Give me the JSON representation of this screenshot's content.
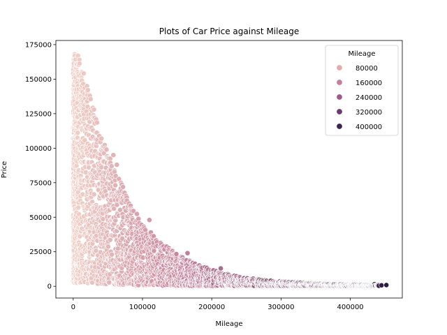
{
  "chart_data": {
    "type": "scatter",
    "title": "Plots of Car Price against Mileage",
    "xlabel": "Mileage",
    "ylabel": "Price",
    "xlim": [
      -25000,
      475000
    ],
    "ylim": [
      -8500,
      178000
    ],
    "xticks": [
      0,
      100000,
      200000,
      300000,
      400000
    ],
    "xtick_labels": [
      "0",
      "100000",
      "200000",
      "300000",
      "400000"
    ],
    "yticks": [
      0,
      25000,
      50000,
      75000,
      100000,
      125000,
      150000,
      175000
    ],
    "ytick_labels": [
      "0",
      "25000",
      "50000",
      "75000",
      "100000",
      "125000",
      "150000",
      "175000"
    ],
    "hue_variable": "Mileage",
    "legend": {
      "title": "Mileage",
      "placement": "top-right",
      "entries": [
        {
          "label": "80000",
          "value": 80000,
          "color": "#e0aeae"
        },
        {
          "label": "160000",
          "value": 160000,
          "color": "#c4809a"
        },
        {
          "label": "240000",
          "value": 240000,
          "color": "#9e5a88"
        },
        {
          "label": "320000",
          "value": 320000,
          "color": "#6a3a6e"
        },
        {
          "label": "400000",
          "value": 400000,
          "color": "#3d2350"
        }
      ]
    },
    "color_scale": {
      "low": "#f0d2c8",
      "low_value": 0,
      "mid": "#c4809a",
      "mid_value": 160000,
      "high": "#2d1a40",
      "high_value": 450000
    },
    "price_envelope": [
      [
        0,
        168000
      ],
      [
        10000,
        165000
      ],
      [
        20000,
        145000
      ],
      [
        30000,
        128000
      ],
      [
        40000,
        110000
      ],
      [
        50000,
        97000
      ],
      [
        60000,
        88000
      ],
      [
        75000,
        68000
      ],
      [
        100000,
        45000
      ],
      [
        125000,
        33000
      ],
      [
        150000,
        23000
      ],
      [
        175000,
        17000
      ],
      [
        200000,
        12000
      ],
      [
        225000,
        8500
      ],
      [
        250000,
        6000
      ],
      [
        300000,
        3500
      ],
      [
        350000,
        2000
      ],
      [
        400000,
        1200
      ],
      [
        455000,
        800
      ]
    ],
    "mileage_max": 455000,
    "outlier_points": [
      {
        "x": 2000,
        "y": 168000
      },
      {
        "x": 7000,
        "y": 167000
      },
      {
        "x": 9000,
        "y": 164000
      },
      {
        "x": 1000,
        "y": 160000
      },
      {
        "x": 12000,
        "y": 151000
      },
      {
        "x": 20000,
        "y": 145000
      },
      {
        "x": 5000,
        "y": 155000
      },
      {
        "x": 24000,
        "y": 138000
      },
      {
        "x": 30000,
        "y": 128000
      },
      {
        "x": 58000,
        "y": 95000
      },
      {
        "x": 63000,
        "y": 88000
      },
      {
        "x": 110000,
        "y": 48000
      },
      {
        "x": 165000,
        "y": 24000
      },
      {
        "x": 213000,
        "y": 13000
      },
      {
        "x": 435000,
        "y": 1500
      },
      {
        "x": 445000,
        "y": 700
      },
      {
        "x": 452000,
        "y": 900
      },
      {
        "x": 420000,
        "y": 1000
      }
    ],
    "point_count": 3400
  }
}
